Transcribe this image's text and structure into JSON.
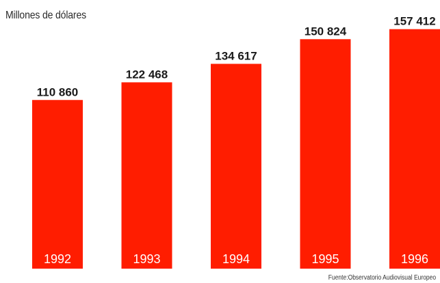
{
  "unit_label": "Millones de dólares",
  "source_note": "Fuente:Observatorio Audiovisual Europeo",
  "colors": {
    "bar": "#ff1d00",
    "value_text": "#1a1a1a",
    "category_text": "#ffffff"
  },
  "chart_data": {
    "type": "bar",
    "categories": [
      "1992",
      "1993",
      "1994",
      "1995",
      "1996"
    ],
    "values": [
      110860,
      122468,
      134617,
      150824,
      157412
    ],
    "value_labels": [
      "110 860",
      "122 468",
      "134 617",
      "150 824",
      "157 412"
    ],
    "title": "",
    "ylabel": "Millones de dólares",
    "xlabel": "",
    "ylim": [
      0,
      164000
    ],
    "grid": false,
    "legend": "none"
  }
}
